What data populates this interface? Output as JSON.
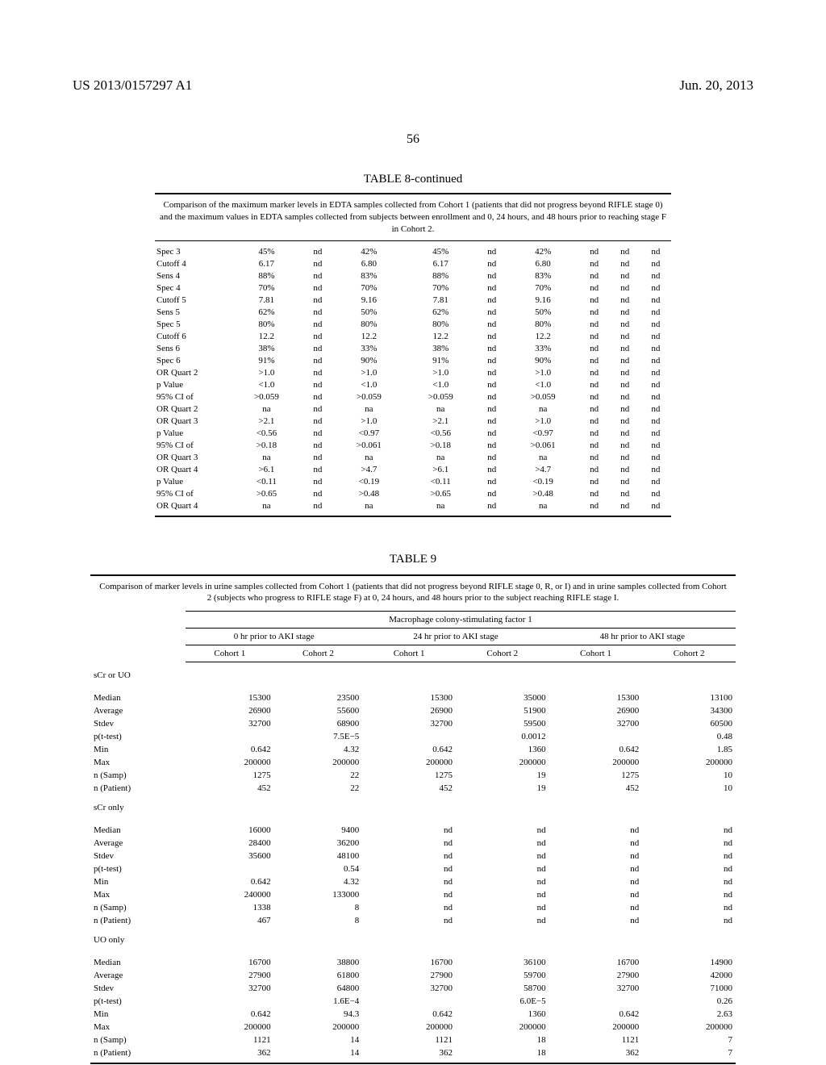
{
  "header": {
    "pub_no": "US 2013/0157297 A1",
    "pub_date": "Jun. 20, 2013",
    "page_num": "56"
  },
  "table8": {
    "title": "TABLE 8-continued",
    "caption": "Comparison of the maximum marker levels in EDTA samples collected from Cohort 1 (patients that did not progress beyond RIFLE stage 0) and the maximum values in EDTA samples collected from subjects between enrollment and 0, 24 hours, and 48 hours prior to reaching stage F in Cohort 2.",
    "rows": [
      {
        "label": "Spec 3",
        "c": [
          "45%",
          "nd",
          "42%",
          "45%",
          "nd",
          "42%",
          "nd",
          "nd",
          "nd"
        ]
      },
      {
        "label": "Cutoff 4",
        "c": [
          "6.17",
          "nd",
          "6.80",
          "6.17",
          "nd",
          "6.80",
          "nd",
          "nd",
          "nd"
        ]
      },
      {
        "label": "Sens 4",
        "c": [
          "88%",
          "nd",
          "83%",
          "88%",
          "nd",
          "83%",
          "nd",
          "nd",
          "nd"
        ]
      },
      {
        "label": "Spec 4",
        "c": [
          "70%",
          "nd",
          "70%",
          "70%",
          "nd",
          "70%",
          "nd",
          "nd",
          "nd"
        ]
      },
      {
        "label": "Cutoff 5",
        "c": [
          "7.81",
          "nd",
          "9.16",
          "7.81",
          "nd",
          "9.16",
          "nd",
          "nd",
          "nd"
        ]
      },
      {
        "label": "Sens 5",
        "c": [
          "62%",
          "nd",
          "50%",
          "62%",
          "nd",
          "50%",
          "nd",
          "nd",
          "nd"
        ]
      },
      {
        "label": "Spec 5",
        "c": [
          "80%",
          "nd",
          "80%",
          "80%",
          "nd",
          "80%",
          "nd",
          "nd",
          "nd"
        ]
      },
      {
        "label": "Cutoff 6",
        "c": [
          "12.2",
          "nd",
          "12.2",
          "12.2",
          "nd",
          "12.2",
          "nd",
          "nd",
          "nd"
        ]
      },
      {
        "label": "Sens 6",
        "c": [
          "38%",
          "nd",
          "33%",
          "38%",
          "nd",
          "33%",
          "nd",
          "nd",
          "nd"
        ]
      },
      {
        "label": "Spec 6",
        "c": [
          "91%",
          "nd",
          "90%",
          "91%",
          "nd",
          "90%",
          "nd",
          "nd",
          "nd"
        ]
      },
      {
        "label": "OR Quart 2",
        "c": [
          ">1.0",
          "nd",
          ">1.0",
          ">1.0",
          "nd",
          ">1.0",
          "nd",
          "nd",
          "nd"
        ]
      },
      {
        "label": "p Value",
        "c": [
          "<1.0",
          "nd",
          "<1.0",
          "<1.0",
          "nd",
          "<1.0",
          "nd",
          "nd",
          "nd"
        ]
      },
      {
        "label": "95% CI of",
        "c": [
          ">0.059",
          "nd",
          ">0.059",
          ">0.059",
          "nd",
          ">0.059",
          "nd",
          "nd",
          "nd"
        ]
      },
      {
        "label": "OR Quart 2",
        "c": [
          "na",
          "nd",
          "na",
          "na",
          "nd",
          "na",
          "nd",
          "nd",
          "nd"
        ]
      },
      {
        "label": "OR Quart 3",
        "c": [
          ">2.1",
          "nd",
          ">1.0",
          ">2.1",
          "nd",
          ">1.0",
          "nd",
          "nd",
          "nd"
        ]
      },
      {
        "label": "p Value",
        "c": [
          "<0.56",
          "nd",
          "<0.97",
          "<0.56",
          "nd",
          "<0.97",
          "nd",
          "nd",
          "nd"
        ]
      },
      {
        "label": "95% CI of",
        "c": [
          ">0.18",
          "nd",
          ">0.061",
          ">0.18",
          "nd",
          ">0.061",
          "nd",
          "nd",
          "nd"
        ]
      },
      {
        "label": "OR Quart 3",
        "c": [
          "na",
          "nd",
          "na",
          "na",
          "nd",
          "na",
          "nd",
          "nd",
          "nd"
        ]
      },
      {
        "label": "OR Quart 4",
        "c": [
          ">6.1",
          "nd",
          ">4.7",
          ">6.1",
          "nd",
          ">4.7",
          "nd",
          "nd",
          "nd"
        ]
      },
      {
        "label": "p Value",
        "c": [
          "<0.11",
          "nd",
          "<0.19",
          "<0.11",
          "nd",
          "<0.19",
          "nd",
          "nd",
          "nd"
        ]
      },
      {
        "label": "95% CI of",
        "c": [
          ">0.65",
          "nd",
          ">0.48",
          ">0.65",
          "nd",
          ">0.48",
          "nd",
          "nd",
          "nd"
        ]
      },
      {
        "label": "OR Quart 4",
        "c": [
          "na",
          "nd",
          "na",
          "na",
          "nd",
          "na",
          "nd",
          "nd",
          "nd"
        ]
      }
    ]
  },
  "table9": {
    "title": "TABLE 9",
    "caption": "Comparison of marker levels in urine samples collected from Cohort 1 (patients that did not progress beyond RIFLE stage 0, R, or I) and in urine samples collected from Cohort 2 (subjects who progress to RIFLE stage F) at 0, 24 hours, and 48 hours prior to the subject reaching RIFLE stage I.",
    "super_header": "Macrophage colony-stimulating factor 1",
    "groups": [
      "0 hr prior to AKI stage",
      "24 hr prior to AKI stage",
      "48 hr prior to AKI stage"
    ],
    "cohorts": [
      "Cohort 1",
      "Cohort 2",
      "Cohort 1",
      "Cohort 2",
      "Cohort 1",
      "Cohort 2"
    ],
    "sections": [
      {
        "name": "sCr or UO",
        "rows": [
          {
            "label": "Median",
            "c": [
              "15300",
              "23500",
              "15300",
              "35000",
              "15300",
              "13100"
            ]
          },
          {
            "label": "Average",
            "c": [
              "26900",
              "55600",
              "26900",
              "51900",
              "26900",
              "34300"
            ]
          },
          {
            "label": "Stdev",
            "c": [
              "32700",
              "68900",
              "32700",
              "59500",
              "32700",
              "60500"
            ]
          },
          {
            "label": "p(t-test)",
            "c": [
              "",
              "7.5E−5",
              "",
              "0.0012",
              "",
              "0.48"
            ]
          },
          {
            "label": "Min",
            "c": [
              "0.642",
              "4.32",
              "0.642",
              "1360",
              "0.642",
              "1.85"
            ]
          },
          {
            "label": "Max",
            "c": [
              "200000",
              "200000",
              "200000",
              "200000",
              "200000",
              "200000"
            ]
          },
          {
            "label": "n (Samp)",
            "c": [
              "1275",
              "22",
              "1275",
              "19",
              "1275",
              "10"
            ]
          },
          {
            "label": "n (Patient)",
            "c": [
              "452",
              "22",
              "452",
              "19",
              "452",
              "10"
            ]
          }
        ]
      },
      {
        "name": "sCr only",
        "rows": [
          {
            "label": "Median",
            "c": [
              "16000",
              "9400",
              "nd",
              "nd",
              "nd",
              "nd"
            ]
          },
          {
            "label": "Average",
            "c": [
              "28400",
              "36200",
              "nd",
              "nd",
              "nd",
              "nd"
            ]
          },
          {
            "label": "Stdev",
            "c": [
              "35600",
              "48100",
              "nd",
              "nd",
              "nd",
              "nd"
            ]
          },
          {
            "label": "p(t-test)",
            "c": [
              "",
              "0.54",
              "nd",
              "nd",
              "nd",
              "nd"
            ]
          },
          {
            "label": "Min",
            "c": [
              "0.642",
              "4.32",
              "nd",
              "nd",
              "nd",
              "nd"
            ]
          },
          {
            "label": "Max",
            "c": [
              "240000",
              "133000",
              "nd",
              "nd",
              "nd",
              "nd"
            ]
          },
          {
            "label": "n (Samp)",
            "c": [
              "1338",
              "8",
              "nd",
              "nd",
              "nd",
              "nd"
            ]
          },
          {
            "label": "n (Patient)",
            "c": [
              "467",
              "8",
              "nd",
              "nd",
              "nd",
              "nd"
            ]
          }
        ]
      },
      {
        "name": "UO only",
        "rows": [
          {
            "label": "Median",
            "c": [
              "16700",
              "38800",
              "16700",
              "36100",
              "16700",
              "14900"
            ]
          },
          {
            "label": "Average",
            "c": [
              "27900",
              "61800",
              "27900",
              "59700",
              "27900",
              "42000"
            ]
          },
          {
            "label": "Stdev",
            "c": [
              "32700",
              "64800",
              "32700",
              "58700",
              "32700",
              "71000"
            ]
          },
          {
            "label": "p(t-test)",
            "c": [
              "",
              "1.6E−4",
              "",
              "6.0E−5",
              "",
              "0.26"
            ]
          },
          {
            "label": "Min",
            "c": [
              "0.642",
              "94.3",
              "0.642",
              "1360",
              "0.642",
              "2.63"
            ]
          },
          {
            "label": "Max",
            "c": [
              "200000",
              "200000",
              "200000",
              "200000",
              "200000",
              "200000"
            ]
          },
          {
            "label": "n (Samp)",
            "c": [
              "1121",
              "14",
              "1121",
              "18",
              "1121",
              "7"
            ]
          },
          {
            "label": "n (Patient)",
            "c": [
              "362",
              "14",
              "362",
              "18",
              "362",
              "7"
            ]
          }
        ]
      }
    ]
  }
}
